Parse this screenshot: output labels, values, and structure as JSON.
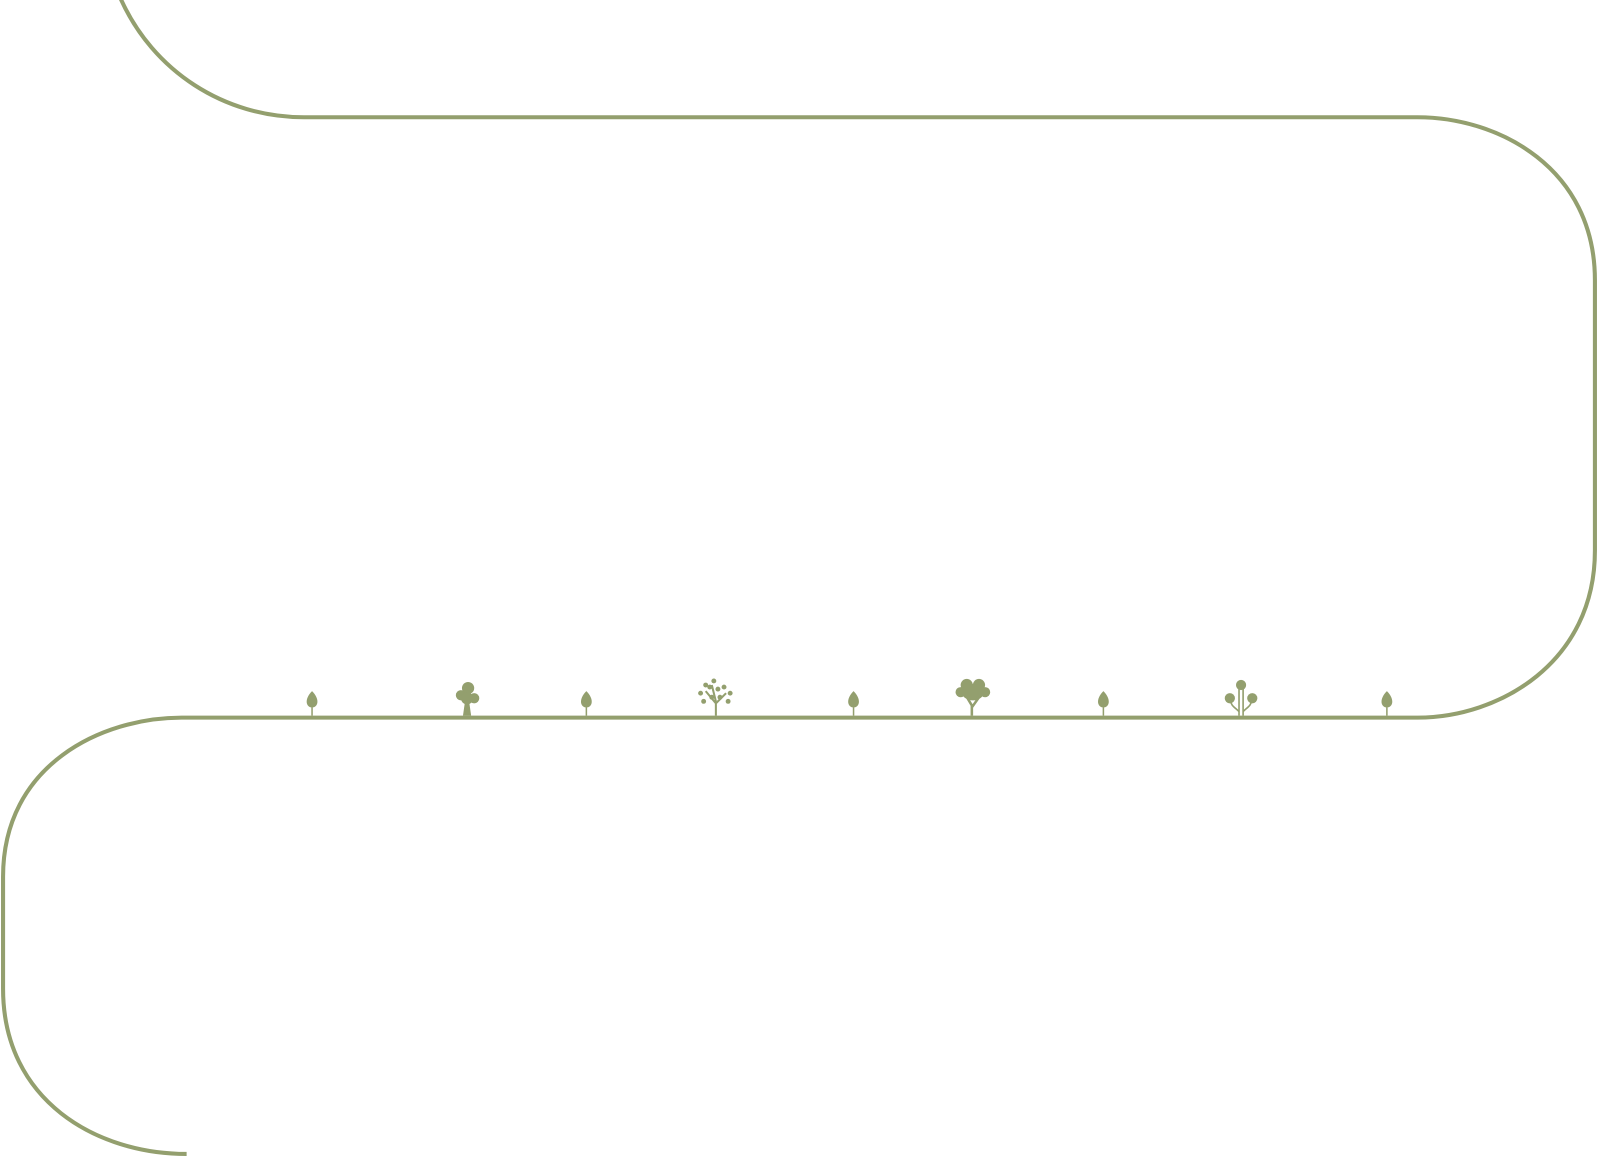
{
  "colors": {
    "background": "#ffffff",
    "path": "#939f6e",
    "icons": "#939f6e"
  },
  "path_icons": [
    "leaf-icon",
    "round-tree-icon",
    "leaf-icon",
    "branching-tree-icon",
    "leaf-icon",
    "bushy-tree-icon",
    "leaf-icon",
    "three-lobed-tree-icon",
    "leaf-icon"
  ]
}
